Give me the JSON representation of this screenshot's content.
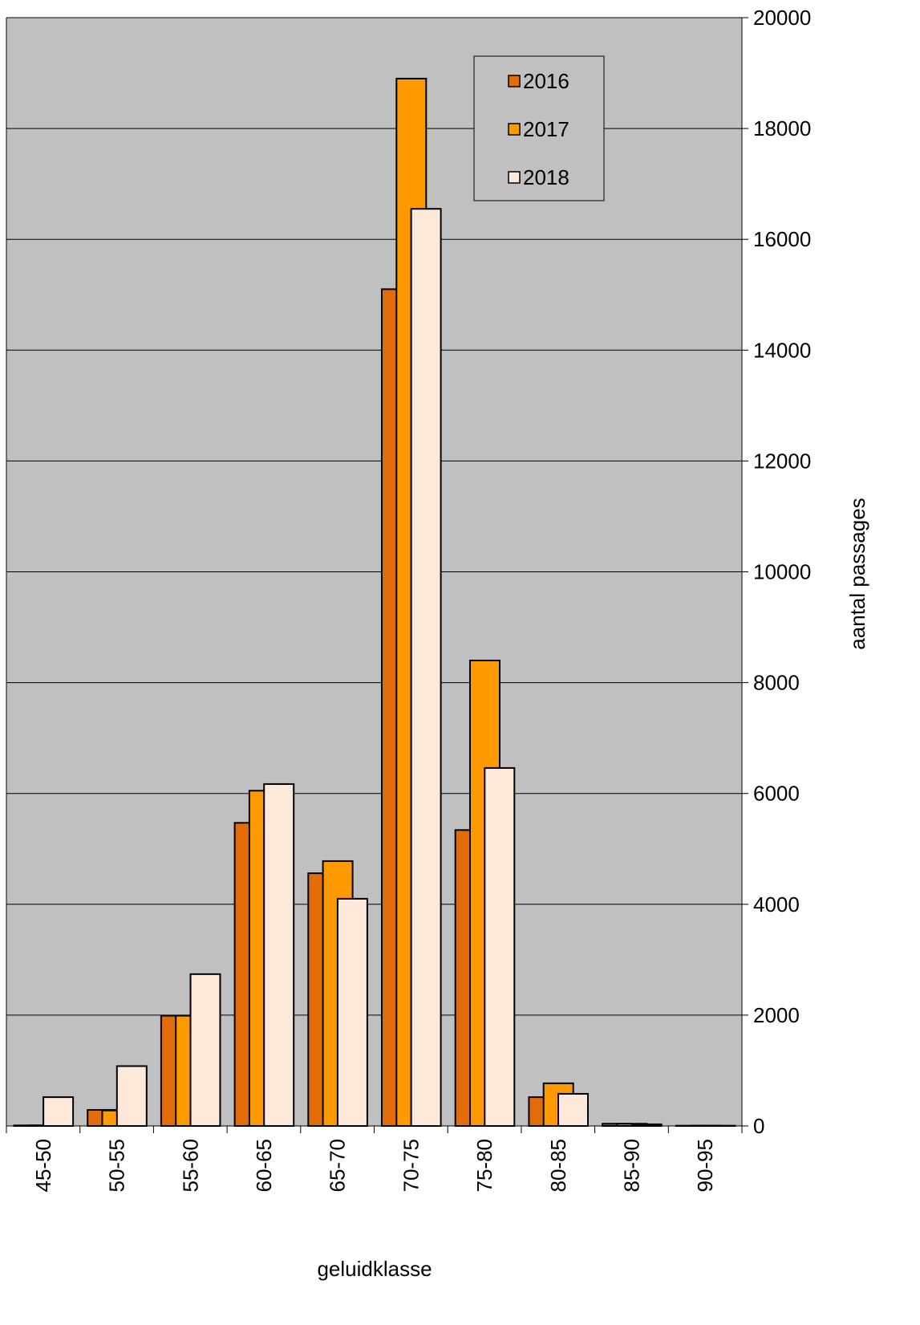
{
  "chart_data": {
    "type": "bar",
    "x_label": "geluidklasse",
    "y_label": "aantal passages",
    "categories": [
      "45-50",
      "50-55",
      "55-60",
      "60-65",
      "65-70",
      "70-75",
      "75-80",
      "80-85",
      "85-90",
      "90-95"
    ],
    "series": [
      {
        "name": "2016",
        "color": "#e36c0a",
        "values": [
          10,
          290,
          1990,
          5470,
          4560,
          15100,
          5340,
          520,
          40,
          5
        ]
      },
      {
        "name": "2017",
        "color": "#ff9900",
        "values": [
          10,
          280,
          1990,
          6050,
          4780,
          18900,
          8400,
          770,
          40,
          5
        ]
      },
      {
        "name": "2018",
        "color": "#fde9d9",
        "values": [
          520,
          1080,
          2740,
          6170,
          4100,
          16550,
          6460,
          580,
          30,
          5
        ]
      }
    ],
    "ylim": [
      0,
      20000
    ],
    "yticks": [
      0,
      2000,
      4000,
      6000,
      8000,
      10000,
      12000,
      14000,
      16000,
      18000,
      20000
    ],
    "grid": true,
    "legend": "top-right"
  }
}
